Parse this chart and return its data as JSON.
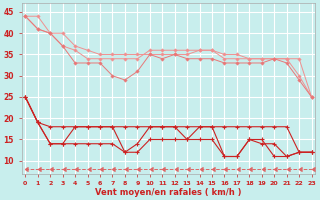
{
  "background_color": "#c8eeed",
  "grid_color": "#ffffff",
  "xlabel": "Vent moyen/en rafales ( km/h )",
  "x_ticks": [
    0,
    1,
    2,
    3,
    4,
    5,
    6,
    7,
    8,
    9,
    10,
    11,
    12,
    13,
    14,
    15,
    16,
    17,
    18,
    19,
    20,
    21,
    22,
    23
  ],
  "ylim": [
    7,
    47
  ],
  "xlim": [
    -0.3,
    23.3
  ],
  "yticks": [
    10,
    15,
    20,
    25,
    30,
    35,
    40,
    45
  ],
  "line1_color": "#f09090",
  "line1_x": [
    0,
    1,
    2,
    3,
    4,
    5,
    6,
    7,
    8,
    9,
    10,
    11,
    12,
    13,
    14,
    15,
    16,
    17,
    18,
    19,
    20,
    21,
    22,
    23
  ],
  "line1_y": [
    44,
    44,
    40,
    40,
    37,
    36,
    35,
    35,
    35,
    35,
    35,
    35,
    35,
    35,
    36,
    36,
    35,
    35,
    34,
    34,
    34,
    34,
    34,
    25
  ],
  "line2_color": "#f09090",
  "line2_x": [
    0,
    1,
    2,
    3,
    4,
    5,
    6,
    7,
    8,
    9,
    10,
    11,
    12,
    13,
    14,
    15,
    16,
    17,
    18,
    19,
    20,
    21,
    22,
    23
  ],
  "line2_y": [
    44,
    41,
    40,
    37,
    36,
    34,
    34,
    34,
    34,
    34,
    36,
    36,
    36,
    36,
    36,
    36,
    34,
    34,
    34,
    34,
    34,
    34,
    30,
    25
  ],
  "line3_color": "#e87878",
  "line3_x": [
    0,
    1,
    2,
    3,
    4,
    5,
    6,
    7,
    8,
    9,
    10,
    11,
    12,
    13,
    14,
    15,
    16,
    17,
    18,
    19,
    20,
    21,
    22,
    23
  ],
  "line3_y": [
    44,
    41,
    40,
    37,
    33,
    33,
    33,
    30,
    29,
    31,
    35,
    34,
    35,
    34,
    34,
    34,
    33,
    33,
    33,
    33,
    34,
    33,
    29,
    25
  ],
  "line4_color": "#cc2222",
  "line4_x": [
    0,
    1,
    2,
    3,
    4,
    5,
    6,
    7,
    8,
    9,
    10,
    11,
    12,
    13,
    14,
    15,
    16,
    17,
    18,
    19,
    20,
    21,
    22,
    23
  ],
  "line4_y": [
    25,
    19,
    18,
    18,
    18,
    18,
    18,
    18,
    18,
    18,
    18,
    18,
    18,
    18,
    18,
    18,
    18,
    18,
    18,
    18,
    18,
    18,
    12,
    12
  ],
  "line5_color": "#cc2222",
  "line5_x": [
    0,
    1,
    2,
    3,
    4,
    5,
    6,
    7,
    8,
    9,
    10,
    11,
    12,
    13,
    14,
    15,
    16,
    17,
    18,
    19,
    20,
    21,
    22,
    23
  ],
  "line5_y": [
    25,
    19,
    14,
    14,
    18,
    18,
    18,
    18,
    12,
    14,
    18,
    18,
    18,
    15,
    18,
    18,
    11,
    11,
    15,
    15,
    11,
    11,
    12,
    12
  ],
  "line6_color": "#cc2222",
  "line6_x": [
    0,
    1,
    2,
    3,
    4,
    5,
    6,
    7,
    8,
    9,
    10,
    11,
    12,
    13,
    14,
    15,
    16,
    17,
    18,
    19,
    20,
    21,
    22,
    23
  ],
  "line6_y": [
    25,
    19,
    14,
    14,
    14,
    14,
    14,
    14,
    12,
    12,
    15,
    15,
    15,
    15,
    15,
    15,
    11,
    11,
    15,
    14,
    14,
    11,
    12,
    12
  ],
  "line7_color": "#dd6666",
  "line7_x": [
    0,
    1,
    2,
    3,
    4,
    5,
    6,
    7,
    8,
    9,
    10,
    11,
    12,
    13,
    14,
    15,
    16,
    17,
    18,
    19,
    20,
    21,
    22,
    23
  ],
  "line7_y": [
    8,
    8,
    8,
    8,
    8,
    8,
    8,
    8,
    8,
    8,
    8,
    8,
    8,
    8,
    8,
    8,
    8,
    8,
    8,
    8,
    8,
    8,
    8,
    8
  ]
}
